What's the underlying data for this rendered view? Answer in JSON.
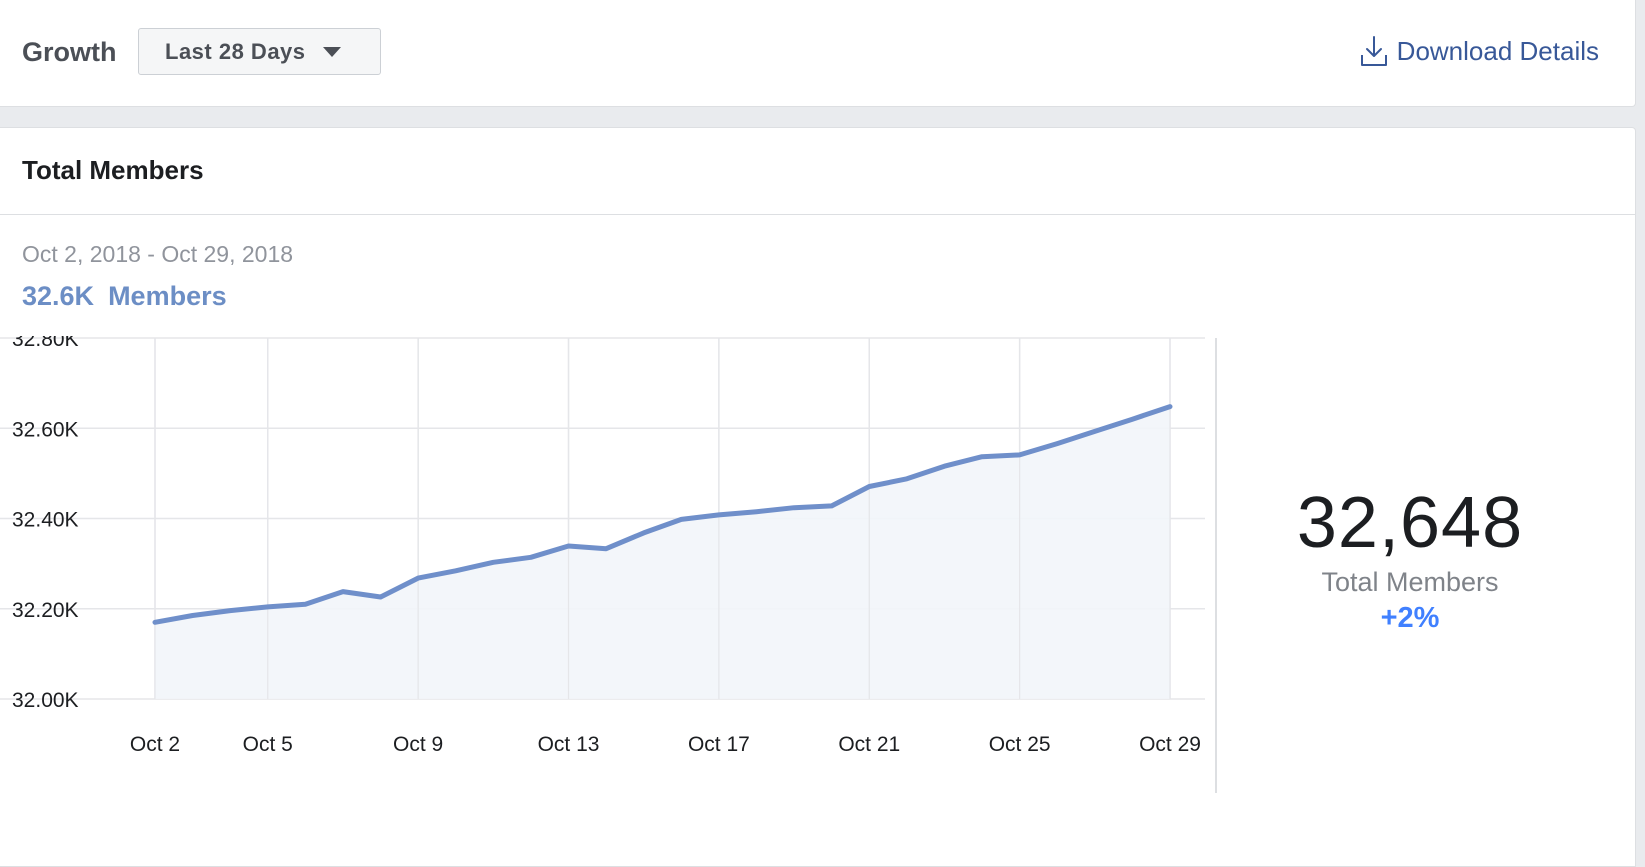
{
  "header": {
    "title": "Growth",
    "range_select": "Last 28 Days",
    "download_label": "Download Details"
  },
  "card": {
    "title": "Total Members",
    "date_range": "Oct 2, 2018 - Oct 29, 2018",
    "summary_value": "32.6K",
    "summary_unit": "Members"
  },
  "stat": {
    "value": "32,648",
    "label": "Total Members",
    "change": "+2%"
  },
  "colors": {
    "accent": "#6c8ec5",
    "link": "#385898",
    "positive": "#4080ff",
    "line": "#6f8fca",
    "area": "#f2f5fa"
  },
  "chart_data": {
    "type": "area",
    "x": [
      "Oct 2",
      "Oct 3",
      "Oct 4",
      "Oct 5",
      "Oct 6",
      "Oct 7",
      "Oct 8",
      "Oct 9",
      "Oct 10",
      "Oct 11",
      "Oct 12",
      "Oct 13",
      "Oct 14",
      "Oct 15",
      "Oct 16",
      "Oct 17",
      "Oct 18",
      "Oct 19",
      "Oct 20",
      "Oct 21",
      "Oct 22",
      "Oct 23",
      "Oct 24",
      "Oct 25",
      "Oct 26",
      "Oct 27",
      "Oct 28",
      "Oct 29"
    ],
    "series": [
      {
        "values": [
          32170,
          32185,
          32196,
          32204,
          32210,
          32238,
          32226,
          32268,
          32284,
          32303,
          32314,
          32339,
          32333,
          32368,
          32398,
          32408,
          32415,
          32424,
          32428,
          32471,
          32488,
          32516,
          32537,
          32541,
          32566,
          32593,
          32620,
          32648
        ]
      }
    ],
    "xticks": [
      "Oct 2",
      "Oct 5",
      "Oct 9",
      "Oct 13",
      "Oct 17",
      "Oct 21",
      "Oct 25",
      "Oct 29"
    ],
    "yticks": [
      "32.00K",
      "32.20K",
      "32.40K",
      "32.60K",
      "32.80K"
    ],
    "ylim": [
      32000,
      32800
    ],
    "grid": true,
    "xlabel": "",
    "ylabel": ""
  }
}
